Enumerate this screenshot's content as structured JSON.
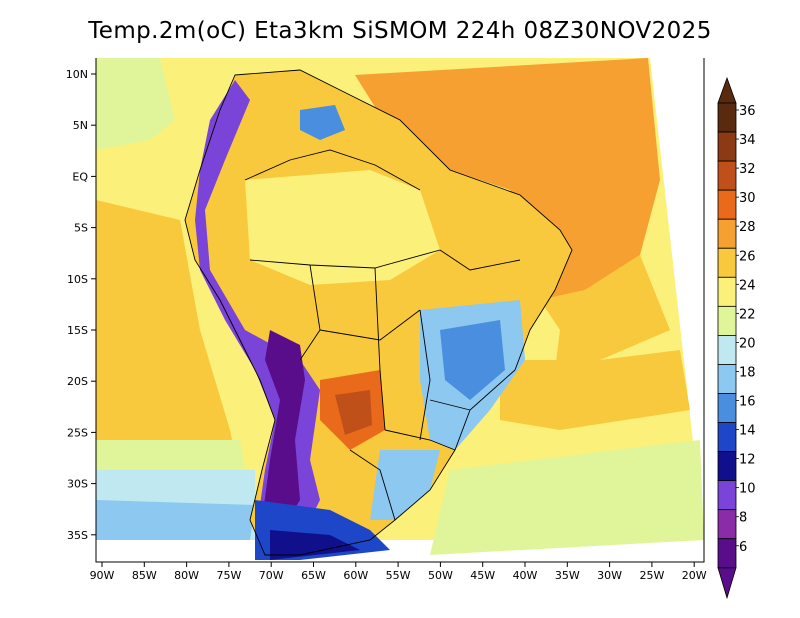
{
  "title": "Temp.2m(oC) Eta3km SiSMOM 224h 08Z30NOV2025",
  "map": {
    "lat_labels": [
      "10N",
      "5N",
      "EQ",
      "5S",
      "10S",
      "15S",
      "20S",
      "25S",
      "30S",
      "35S"
    ],
    "lon_labels": [
      "90W",
      "85W",
      "80W",
      "75W",
      "70W",
      "65W",
      "60W",
      "55W",
      "50W",
      "45W",
      "40W",
      "35W",
      "30W",
      "25W",
      "20W"
    ]
  },
  "colorbar": {
    "labels": [
      "36",
      "34",
      "32",
      "30",
      "28",
      "26",
      "24",
      "22",
      "20",
      "18",
      "16",
      "14",
      "12",
      "10",
      "8",
      "6"
    ],
    "colors": [
      "#5a2a0f",
      "#8b3a14",
      "#c0501a",
      "#e86a1a",
      "#f5a030",
      "#f8c93c",
      "#fbf07a",
      "#e0f59a",
      "#bfe8f0",
      "#8cc8f0",
      "#4a8ee0",
      "#1e46c8",
      "#10108c",
      "#7a44d8",
      "#8a2ca8",
      "#5a0d8a"
    ],
    "arrow_top_color": "#5a2a0f",
    "arrow_bottom_color": "#5a0d8a"
  },
  "palette": {
    "ocean_warm": "#fbf07a",
    "ocean_orange": "#f5a030",
    "land_warm": "#f8c93c",
    "cool_highlands": "#8cc8f0",
    "andes": "#7a44d8",
    "south_cold": "#4a8ee0"
  }
}
